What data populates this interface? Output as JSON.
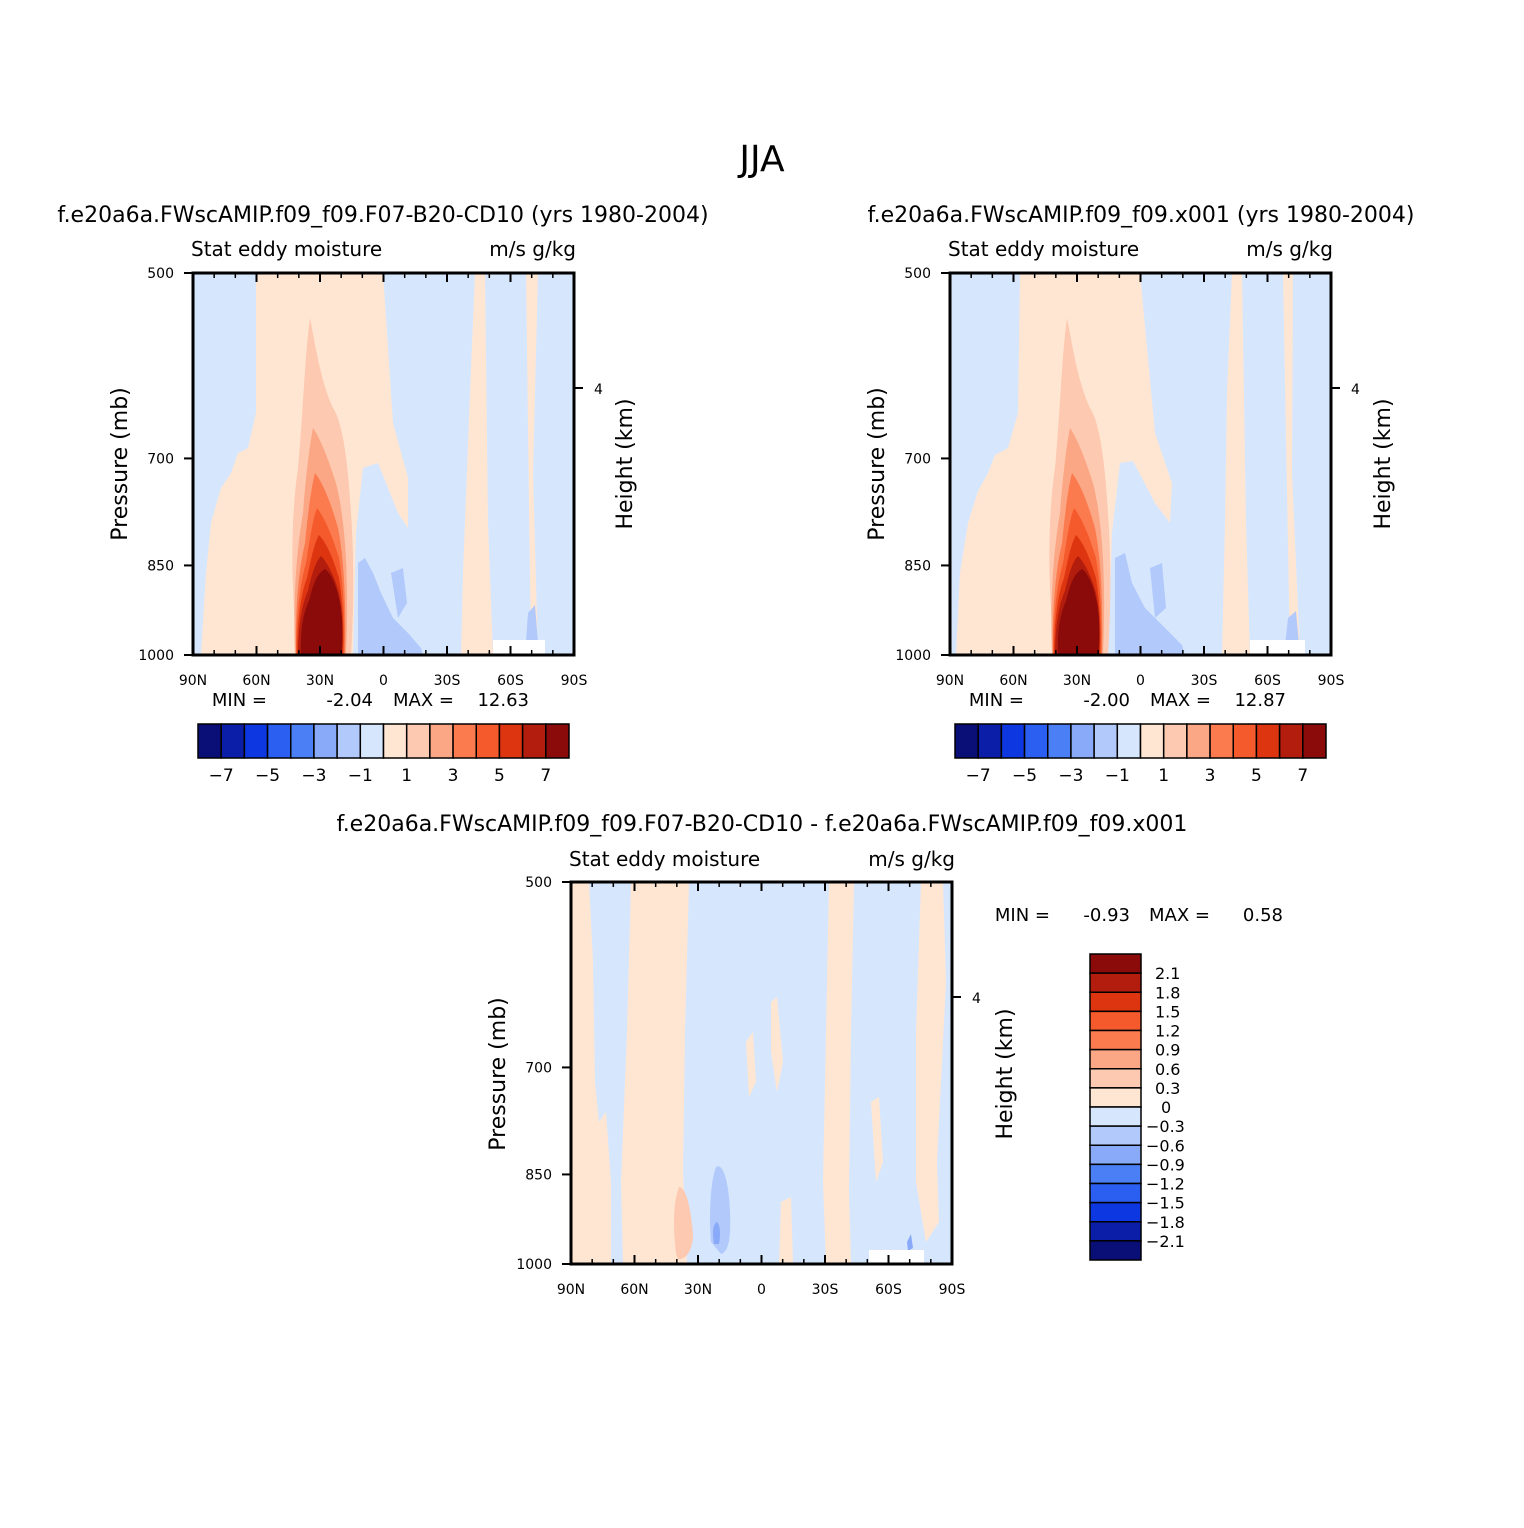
{
  "figure": {
    "title": "JJA"
  },
  "panels": [
    {
      "id": "left",
      "case_title": "f.e20a6a.FWscAMIP.f09_f09.F07-B20-CD10 (yrs 1980-2004)",
      "variable": "Stat eddy moisture",
      "units": "m/s g/kg",
      "ylabel": "Pressure (mb)",
      "ylabel_right": "Height (km)",
      "min_label": "MIN =",
      "min_value": "-2.04",
      "max_label": "MAX =",
      "max_value": "12.63"
    },
    {
      "id": "right",
      "case_title": "f.e20a6a.FWscAMIP.f09_f09.x001 (yrs 1980-2004)",
      "variable": "Stat eddy moisture",
      "units": "m/s g/kg",
      "ylabel": "Pressure (mb)",
      "ylabel_right": "Height (km)",
      "min_label": "MIN =",
      "min_value": "-2.00",
      "max_label": "MAX =",
      "max_value": "12.87"
    },
    {
      "id": "diff",
      "case_title": "f.e20a6a.FWscAMIP.f09_f09.F07-B20-CD10 - f.e20a6a.FWscAMIP.f09_f09.x001",
      "variable": "Stat eddy moisture",
      "units": "m/s g/kg",
      "ylabel": "Pressure (mb)",
      "ylabel_right": "Height (km)",
      "min_label": "MIN =",
      "min_value": "-0.93",
      "max_label": "MAX =",
      "max_value": "0.58"
    }
  ],
  "colorbars": {
    "main": {
      "colors": [
        "#0a0f78",
        "#0a1ea8",
        "#0d37e0",
        "#2b5ff2",
        "#4b7ff5",
        "#88aaf8",
        "#b2c9fb",
        "#d6e7fd",
        "#ffe6d3",
        "#fdc9b0",
        "#fba785",
        "#fb7b4f",
        "#f55a2c",
        "#dd3510",
        "#b31d0d",
        "#8b0a0a"
      ],
      "tick_labels": [
        "-7",
        "-5",
        "-3",
        "-1",
        "1",
        "3",
        "5",
        "7"
      ]
    },
    "diff": {
      "colors_top_to_bottom": [
        "#8b0a0a",
        "#b31d0d",
        "#dd3510",
        "#f55a2c",
        "#fb7b4f",
        "#fba785",
        "#fdc9b0",
        "#ffe6d3",
        "#d6e7fd",
        "#b2c9fb",
        "#88aaf8",
        "#4b7ff5",
        "#2b5ff2",
        "#0d37e0",
        "#0a1ea8",
        "#0a0f78"
      ],
      "tick_labels": [
        "2.1",
        "1.8",
        "1.5",
        "1.2",
        "0.9",
        "0.6",
        "0.3",
        "0",
        "-0.3",
        "-0.6",
        "-0.9",
        "-1.2",
        "-1.5",
        "-1.8",
        "-2.1"
      ]
    }
  },
  "chart_data": [
    {
      "type": "heatmap",
      "title": "f.e20a6a.FWscAMIP.f09_f09.F07-B20-CD10 (yrs 1980-2004)",
      "subtitle": "Stat eddy moisture  m/s g/kg",
      "x_tick_labels": [
        "90N",
        "60N",
        "30N",
        "0",
        "30S",
        "60S",
        "90S"
      ],
      "x_ticks_deg": [
        90,
        60,
        30,
        0,
        -30,
        -60,
        -90
      ],
      "xlim": [
        90,
        -90
      ],
      "y_tick_labels": [
        "500",
        "700",
        "850",
        "1000"
      ],
      "y_ticks_mb": [
        500,
        700,
        850,
        1000
      ],
      "ylim": [
        1000,
        500
      ],
      "y_scale": "log",
      "right_axis_ticks_km": [
        4
      ],
      "ylabel": "Pressure (mb)",
      "ylabel_right": "Height (km)",
      "min": -2.04,
      "max": 12.63,
      "contour_levels": [
        -7,
        -6,
        -5,
        -4,
        -3,
        -2,
        -1,
        0,
        1,
        2,
        3,
        4,
        5,
        6,
        7
      ],
      "maxima": [
        {
          "lat": 30,
          "p_mb": 950,
          "value": 12.63
        }
      ]
    },
    {
      "type": "heatmap",
      "title": "f.e20a6a.FWscAMIP.f09_f09.x001 (yrs 1980-2004)",
      "subtitle": "Stat eddy moisture  m/s g/kg",
      "x_tick_labels": [
        "90N",
        "60N",
        "30N",
        "0",
        "30S",
        "60S",
        "90S"
      ],
      "x_ticks_deg": [
        90,
        60,
        30,
        0,
        -30,
        -60,
        -90
      ],
      "xlim": [
        90,
        -90
      ],
      "y_tick_labels": [
        "500",
        "700",
        "850",
        "1000"
      ],
      "y_ticks_mb": [
        500,
        700,
        850,
        1000
      ],
      "ylim": [
        1000,
        500
      ],
      "y_scale": "log",
      "right_axis_ticks_km": [
        4
      ],
      "ylabel": "Pressure (mb)",
      "ylabel_right": "Height (km)",
      "min": -2.0,
      "max": 12.87,
      "contour_levels": [
        -7,
        -6,
        -5,
        -4,
        -3,
        -2,
        -1,
        0,
        1,
        2,
        3,
        4,
        5,
        6,
        7
      ],
      "maxima": [
        {
          "lat": 30,
          "p_mb": 950,
          "value": 12.87
        }
      ]
    },
    {
      "type": "heatmap",
      "title": "f.e20a6a.FWscAMIP.f09_f09.F07-B20-CD10 - f.e20a6a.FWscAMIP.f09_f09.x001",
      "subtitle": "Stat eddy moisture  m/s g/kg",
      "x_tick_labels": [
        "90N",
        "60N",
        "30N",
        "0",
        "30S",
        "60S",
        "90S"
      ],
      "x_ticks_deg": [
        90,
        60,
        30,
        0,
        -30,
        -60,
        -90
      ],
      "xlim": [
        90,
        -90
      ],
      "y_tick_labels": [
        "500",
        "700",
        "850",
        "1000"
      ],
      "y_ticks_mb": [
        500,
        700,
        850,
        1000
      ],
      "ylim": [
        1000,
        500
      ],
      "y_scale": "log",
      "right_axis_ticks_km": [
        4
      ],
      "ylabel": "Pressure (mb)",
      "ylabel_right": "Height (km)",
      "min": -0.93,
      "max": 0.58,
      "contour_levels": [
        -2.1,
        -1.8,
        -1.5,
        -1.2,
        -0.9,
        -0.6,
        -0.3,
        0,
        0.3,
        0.6,
        0.9,
        1.2,
        1.5,
        1.8,
        2.1
      ]
    }
  ]
}
